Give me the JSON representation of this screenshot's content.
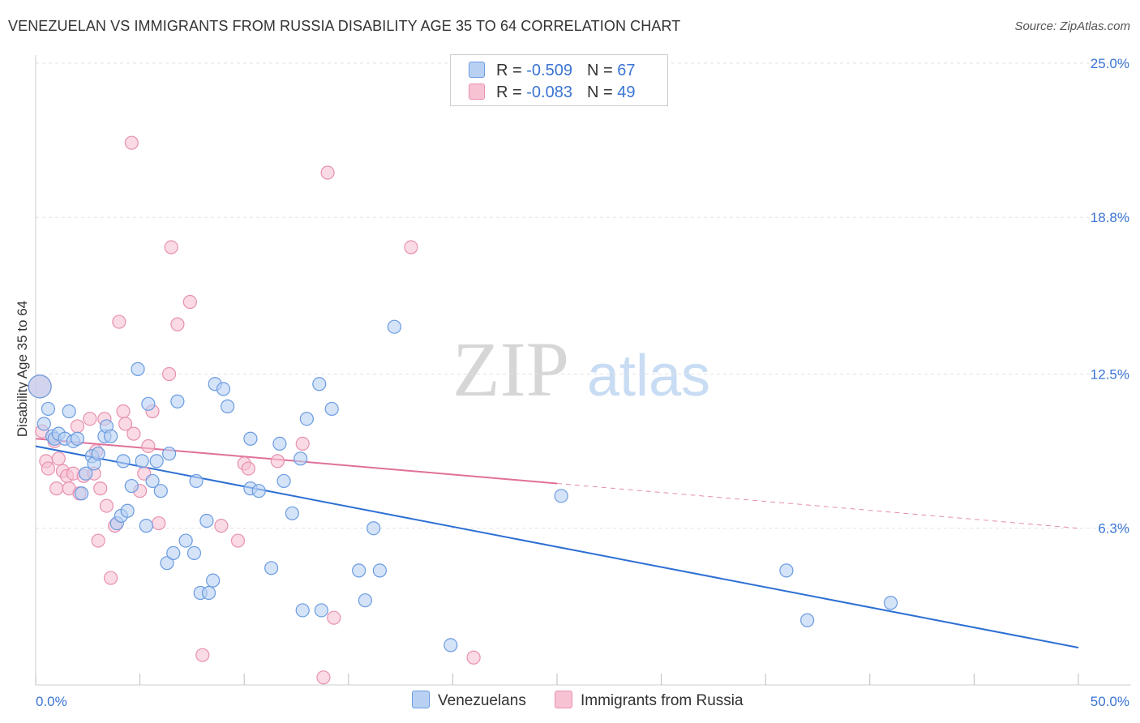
{
  "title": "VENEZUELAN VS IMMIGRANTS FROM RUSSIA DISABILITY AGE 35 TO 64 CORRELATION CHART",
  "source": "Source: ZipAtlas.com",
  "watermark": {
    "zip": "ZIP",
    "atlas": "atlas"
  },
  "legend": {
    "rows": [
      {
        "r_label": "R = ",
        "r_value": "-0.509",
        "n_label": "N = ",
        "n_value": "67"
      },
      {
        "r_label": "R = ",
        "r_value": "-0.083",
        "n_label": "N = ",
        "n_value": "49"
      }
    ]
  },
  "bottom_legend": {
    "series1": "Venezuelans",
    "series2": "Immigrants from Russia"
  },
  "colors": {
    "blue_fill": "#b8d1f3",
    "blue_stroke": "#6a9be0",
    "blue_line": "#2d6fd4",
    "pink_fill": "#f7c2d2",
    "pink_stroke": "#e791b0",
    "pink_line": "#e0709a",
    "axis_text": "#3a74d4"
  },
  "chart_data": {
    "type": "scatter",
    "title": "VENEZUELAN VS IMMIGRANTS FROM RUSSIA DISABILITY AGE 35 TO 64 CORRELATION CHART",
    "xlabel": "",
    "ylabel": "Disability Age 35 to 64",
    "xlim": [
      0,
      50
    ],
    "ylim": [
      0,
      25.0
    ],
    "x_tick_labels": [
      "0.0%",
      "50.0%"
    ],
    "y_ticks": [
      6.3,
      12.5,
      18.8,
      25.0
    ],
    "y_tick_labels": [
      "6.3%",
      "12.5%",
      "18.8%",
      "25.0%"
    ],
    "series": [
      {
        "name": "Venezuelans",
        "R": -0.509,
        "N": 67,
        "trend": {
          "x0": 0,
          "y0": 9.6,
          "x1": 50,
          "y1": 1.5
        },
        "points": [
          [
            0.2,
            12.0
          ],
          [
            0.4,
            10.5
          ],
          [
            0.6,
            11.1
          ],
          [
            0.8,
            10.0
          ],
          [
            0.9,
            9.9
          ],
          [
            1.1,
            10.1
          ],
          [
            1.4,
            9.9
          ],
          [
            1.6,
            11.0
          ],
          [
            1.8,
            9.8
          ],
          [
            2.0,
            9.9
          ],
          [
            2.2,
            7.7
          ],
          [
            2.4,
            8.5
          ],
          [
            2.7,
            9.2
          ],
          [
            2.8,
            8.9
          ],
          [
            3.0,
            9.3
          ],
          [
            3.3,
            10.0
          ],
          [
            3.4,
            10.4
          ],
          [
            3.6,
            10.0
          ],
          [
            3.9,
            6.5
          ],
          [
            4.1,
            6.8
          ],
          [
            4.2,
            9.0
          ],
          [
            4.4,
            7.0
          ],
          [
            4.6,
            8.0
          ],
          [
            4.9,
            12.7
          ],
          [
            5.1,
            9.0
          ],
          [
            5.3,
            6.4
          ],
          [
            5.4,
            11.3
          ],
          [
            5.6,
            8.2
          ],
          [
            5.8,
            9.0
          ],
          [
            6.0,
            7.8
          ],
          [
            6.3,
            4.9
          ],
          [
            6.4,
            9.3
          ],
          [
            6.6,
            5.3
          ],
          [
            6.8,
            11.4
          ],
          [
            7.2,
            5.8
          ],
          [
            7.6,
            5.3
          ],
          [
            7.7,
            8.2
          ],
          [
            7.9,
            3.7
          ],
          [
            8.2,
            6.6
          ],
          [
            8.3,
            3.7
          ],
          [
            8.5,
            4.2
          ],
          [
            8.6,
            12.1
          ],
          [
            9.0,
            11.9
          ],
          [
            9.2,
            11.2
          ],
          [
            10.3,
            9.9
          ],
          [
            10.3,
            7.9
          ],
          [
            10.7,
            7.8
          ],
          [
            11.3,
            4.7
          ],
          [
            11.7,
            9.7
          ],
          [
            11.9,
            8.2
          ],
          [
            12.3,
            6.9
          ],
          [
            12.7,
            9.1
          ],
          [
            12.8,
            3.0
          ],
          [
            13.0,
            10.7
          ],
          [
            13.6,
            12.1
          ],
          [
            13.7,
            3.0
          ],
          [
            14.2,
            11.1
          ],
          [
            15.5,
            4.6
          ],
          [
            15.8,
            3.4
          ],
          [
            16.2,
            6.3
          ],
          [
            16.5,
            4.6
          ],
          [
            17.2,
            14.4
          ],
          [
            19.9,
            1.6
          ],
          [
            25.2,
            7.6
          ],
          [
            36.0,
            4.6
          ],
          [
            37.0,
            2.6
          ],
          [
            41.0,
            3.3
          ]
        ]
      },
      {
        "name": "Immigrants from Russia",
        "R": -0.083,
        "N": 49,
        "trend": {
          "x0": 0,
          "y0": 9.9,
          "x1": 25,
          "y1": 8.1,
          "dash_x1": 50,
          "dash_y1": 6.3
        },
        "points": [
          [
            0.2,
            12.0
          ],
          [
            0.3,
            10.2
          ],
          [
            0.5,
            9.0
          ],
          [
            0.6,
            8.7
          ],
          [
            0.9,
            9.8
          ],
          [
            1.0,
            7.9
          ],
          [
            1.1,
            9.1
          ],
          [
            1.3,
            8.6
          ],
          [
            1.5,
            8.4
          ],
          [
            1.6,
            7.9
          ],
          [
            1.8,
            8.5
          ],
          [
            2.0,
            10.4
          ],
          [
            2.1,
            7.7
          ],
          [
            2.3,
            8.4
          ],
          [
            2.6,
            10.7
          ],
          [
            2.8,
            8.5
          ],
          [
            2.9,
            9.4
          ],
          [
            3.0,
            5.8
          ],
          [
            3.1,
            7.9
          ],
          [
            3.3,
            10.7
          ],
          [
            3.4,
            7.2
          ],
          [
            3.6,
            4.3
          ],
          [
            3.8,
            6.4
          ],
          [
            4.0,
            14.6
          ],
          [
            4.2,
            11.0
          ],
          [
            4.3,
            10.5
          ],
          [
            4.6,
            21.8
          ],
          [
            4.7,
            10.1
          ],
          [
            5.0,
            7.8
          ],
          [
            5.2,
            8.5
          ],
          [
            5.4,
            9.6
          ],
          [
            5.6,
            11.0
          ],
          [
            5.9,
            6.5
          ],
          [
            6.4,
            12.5
          ],
          [
            6.5,
            17.6
          ],
          [
            6.8,
            14.5
          ],
          [
            7.4,
            15.4
          ],
          [
            8.0,
            1.2
          ],
          [
            8.9,
            6.4
          ],
          [
            9.7,
            5.8
          ],
          [
            10.0,
            8.9
          ],
          [
            10.2,
            8.7
          ],
          [
            11.6,
            9.0
          ],
          [
            12.8,
            9.7
          ],
          [
            13.8,
            0.3
          ],
          [
            14.0,
            20.6
          ],
          [
            14.3,
            2.7
          ],
          [
            18.0,
            17.6
          ],
          [
            21.0,
            1.1
          ]
        ]
      }
    ]
  }
}
